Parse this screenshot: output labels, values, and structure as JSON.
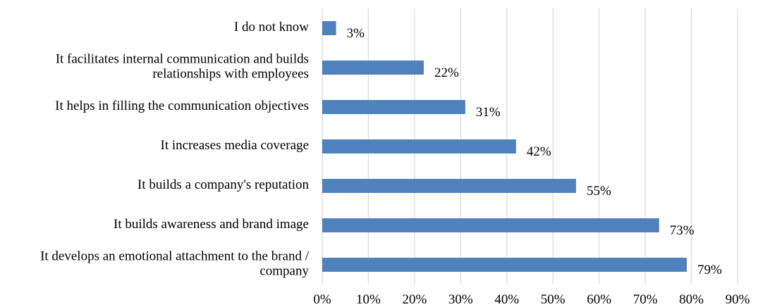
{
  "chart_data": {
    "type": "bar",
    "orientation": "horizontal",
    "title": "",
    "xlabel": "",
    "ylabel": "",
    "categories": [
      [
        "I do not know"
      ],
      [
        "It facilitates internal communication and builds",
        "relationships with employees"
      ],
      [
        "It helps in filling the communication objectives"
      ],
      [
        "It increases media coverage"
      ],
      [
        "It builds a company's reputation"
      ],
      [
        "It builds awareness and brand image"
      ],
      [
        "It develops an emotional attachment to the brand /",
        "company"
      ]
    ],
    "values": [
      3,
      22,
      31,
      42,
      55,
      73,
      79
    ],
    "data_labels": [
      "3%",
      "22%",
      "31%",
      "42%",
      "55%",
      "73%",
      "79%"
    ],
    "xlim": [
      0,
      90
    ],
    "x_ticks": [
      0,
      10,
      20,
      30,
      40,
      50,
      60,
      70,
      80,
      90
    ],
    "x_tick_labels": [
      "0%",
      "10%",
      "20%",
      "30%",
      "40%",
      "50%",
      "60%",
      "70%",
      "80%",
      "90%"
    ],
    "bar_color": "#4f81bd",
    "grid": true,
    "legend": "none"
  }
}
